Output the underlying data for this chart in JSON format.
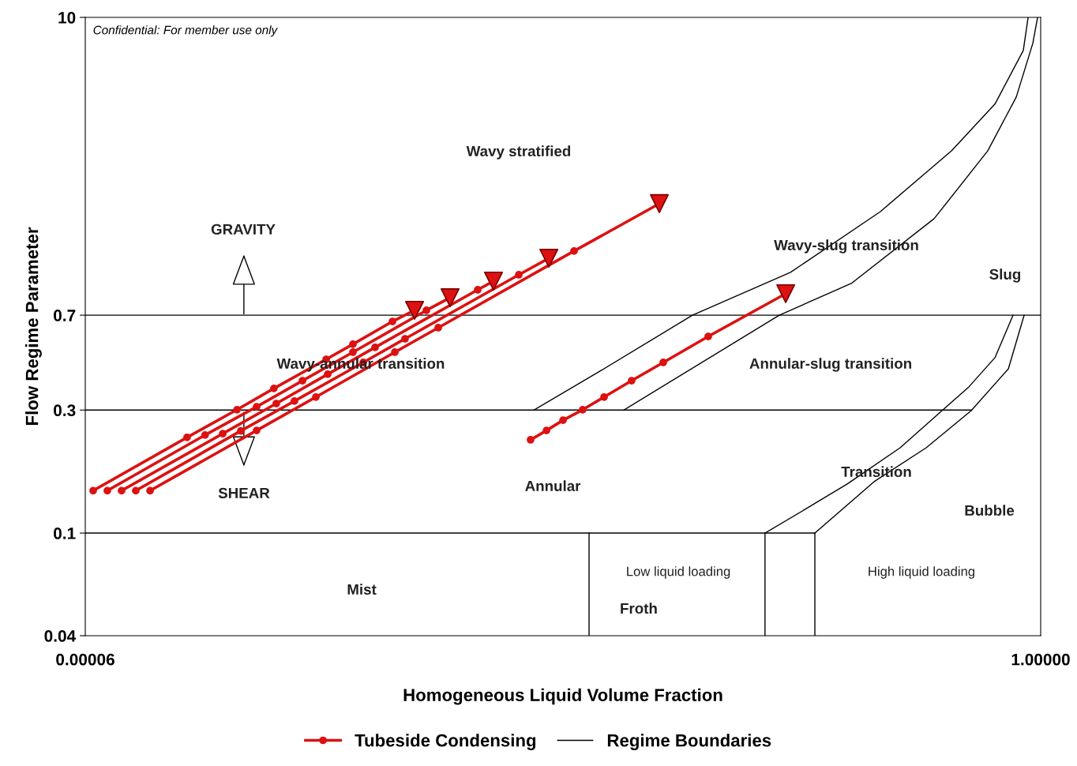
{
  "chart_data": {
    "type": "line",
    "xlabel": "Homogeneous Liquid Volume Fraction",
    "ylabel": "Flow Regime Parameter",
    "log": "xy",
    "xlim": [
      6e-05,
      1
    ],
    "ylim": [
      0.04,
      10
    ],
    "xticks": [
      {
        "value": 6e-05,
        "label": "0.00006"
      },
      {
        "value": 1,
        "label": "1.00000"
      }
    ],
    "yticks": [
      0.04,
      0.1,
      0.3,
      0.7,
      10
    ],
    "grid": false,
    "legend": "bottom",
    "series": [
      {
        "name": "Tubeside Condensing",
        "color": "#dd1111",
        "marker": "circle",
        "x": [
          6.5e-05,
          0.000169,
          0.000281,
          0.000409,
          0.000696,
          0.000914,
          0.001367,
          0.001711
        ],
        "values": [
          0.146,
          0.235,
          0.301,
          0.364,
          0.472,
          0.54,
          0.662,
          0.731
        ]
      },
      {
        "color": "#dd1111",
        "marker": "circle",
        "x": [
          7.51e-05,
          0.000203,
          0.000343,
          0.000547,
          0.000914,
          0.00193,
          0.002456
        ],
        "values": [
          0.146,
          0.24,
          0.309,
          0.39,
          0.503,
          0.731,
          0.818
        ]
      },
      {
        "color": "#dd1111",
        "marker": "circle",
        "x": [
          8.68e-05,
          0.000243,
          0.000419,
          0.000707,
          0.001145,
          0.003253,
          0.00382
        ],
        "values": [
          0.146,
          0.243,
          0.318,
          0.413,
          0.525,
          0.878,
          0.949
        ]
      },
      {
        "color": "#dd1111",
        "marker": "circle",
        "x": [
          0.0001003,
          0.000292,
          0.000504,
          0.001015,
          0.001553,
          0.00494,
          0.00671
        ],
        "values": [
          0.146,
          0.249,
          0.325,
          0.459,
          0.567,
          1.004,
          1.164
        ]
      },
      {
        "color": "#dd1111",
        "marker": "circle",
        "x": [
          0.000116,
          0.000343,
          0.000627,
          0.0014,
          0.002177,
          0.00867,
          0.02065
        ],
        "values": [
          0.146,
          0.25,
          0.337,
          0.503,
          0.626,
          1.241,
          1.895
        ]
      },
      {
        "color": "#dd1111",
        "marker": "circle",
        "x": [
          0.00557,
          0.00655,
          0.00775,
          0.00947,
          0.01177,
          0.01558,
          0.02149,
          0.03398,
          0.0747
        ],
        "values": [
          0.23,
          0.25,
          0.274,
          0.301,
          0.337,
          0.39,
          0.459,
          0.579,
          0.848
        ]
      },
      {
        "type": "scatter",
        "color": "#dd1111",
        "marker": "triangle",
        "x": [
          0.001711,
          0.002456,
          0.00382,
          0.00671,
          0.02065,
          0.0747
        ],
        "values": [
          0.731,
          0.818,
          0.949,
          1.164,
          1.895,
          0.848
        ]
      },
      {
        "name": "Regime Boundaries",
        "color": "#000000",
        "x": [
          6e-05,
          1
        ],
        "values": [
          0.7,
          0.7
        ]
      },
      {
        "color": "#000000",
        "x": [
          6e-05,
          0.4932
        ],
        "values": [
          0.3,
          0.3
        ]
      },
      {
        "color": "#000000",
        "x": [
          6e-05,
          0.1005
        ],
        "values": [
          0.1,
          0.1
        ]
      },
      {
        "color": "#000000",
        "x": [
          0.0101,
          0.0101
        ],
        "values": [
          0.04,
          0.1
        ]
      },
      {
        "color": "#000000",
        "x": [
          0.0605,
          0.0605
        ],
        "values": [
          0.04,
          0.1
        ]
      },
      {
        "color": "#000000",
        "x": [
          0.1005,
          0.1005
        ],
        "values": [
          0.04,
          0.1
        ]
      },
      {
        "color": "#000000",
        "x": [
          0.00576,
          0.0113,
          0.02893,
          0.0784,
          0.1957,
          0.4036,
          0.6278,
          0.838,
          0.88
        ],
        "values": [
          0.3,
          0.4247,
          0.7,
          1.026,
          1.765,
          3.039,
          4.61,
          7.44,
          10
        ]
      },
      {
        "color": "#000000",
        "x": [
          0.01438,
          0.07,
          0.1455,
          0.3382,
          0.584,
          0.78,
          0.923,
          0.969
        ],
        "values": [
          0.3,
          0.7,
          0.929,
          1.657,
          3.039,
          4.91,
          7.93,
          10
        ]
      },
      {
        "color": "#000000",
        "x": [
          0.0605,
          0.0935,
          0.1397,
          0.2393,
          0.3664,
          0.4816,
          0.628,
          0.755
        ],
        "values": [
          0.1,
          0.1254,
          0.155,
          0.2143,
          0.2985,
          0.369,
          0.479,
          0.7
        ]
      },
      {
        "color": "#000000",
        "x": [
          0.1005,
          0.1836,
          0.312,
          0.4932,
          0.72,
          0.845
        ],
        "values": [
          0.1,
          0.1583,
          0.2143,
          0.2985,
          0.4338,
          0.7
        ]
      }
    ],
    "annotations": [
      "Confidential: For member use only",
      "Wavy stratified",
      "GRAVITY",
      "Wavy-slug transition",
      "Slug",
      "Wavy-annular transition",
      "Annular-slug transition",
      "SHEAR",
      "Annular",
      "Transition",
      "Bubble",
      "Mist",
      "Low liquid loading",
      "Froth",
      "High liquid loading"
    ]
  }
}
